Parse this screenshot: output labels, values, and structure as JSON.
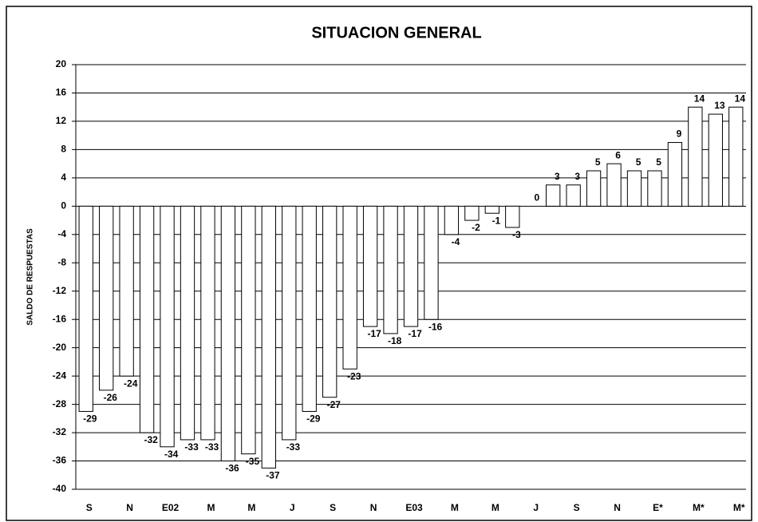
{
  "chart_data": {
    "type": "bar",
    "title": "SITUACION GENERAL",
    "y_label": "SALDO DE RESPUESTAS",
    "categories": [
      "S",
      null,
      "N",
      null,
      "E02",
      null,
      "M",
      null,
      "M",
      null,
      "J",
      null,
      "S",
      null,
      "N",
      null,
      "E03",
      null,
      "M",
      null,
      "M",
      null,
      "J",
      null,
      "S",
      null,
      "N",
      null,
      "E*",
      null,
      "M*",
      null,
      "M*"
    ],
    "values": [
      -29,
      -26,
      -24,
      -32,
      -34,
      -33,
      -33,
      -36,
      -35,
      -37,
      -33,
      -29,
      -27,
      -23,
      -17,
      -18,
      -17,
      -16,
      -4,
      -2,
      -1,
      -3,
      0,
      3,
      3,
      5,
      6,
      5,
      5,
      9,
      14,
      13,
      14
    ],
    "color": "#ffffff",
    "ylim": [
      -40,
      20
    ],
    "yticks": [
      20,
      16,
      12,
      8,
      4,
      0,
      -4,
      -8,
      -12,
      -16,
      -20,
      -24,
      -28,
      -32,
      -36,
      -40
    ],
    "grid": true
  }
}
